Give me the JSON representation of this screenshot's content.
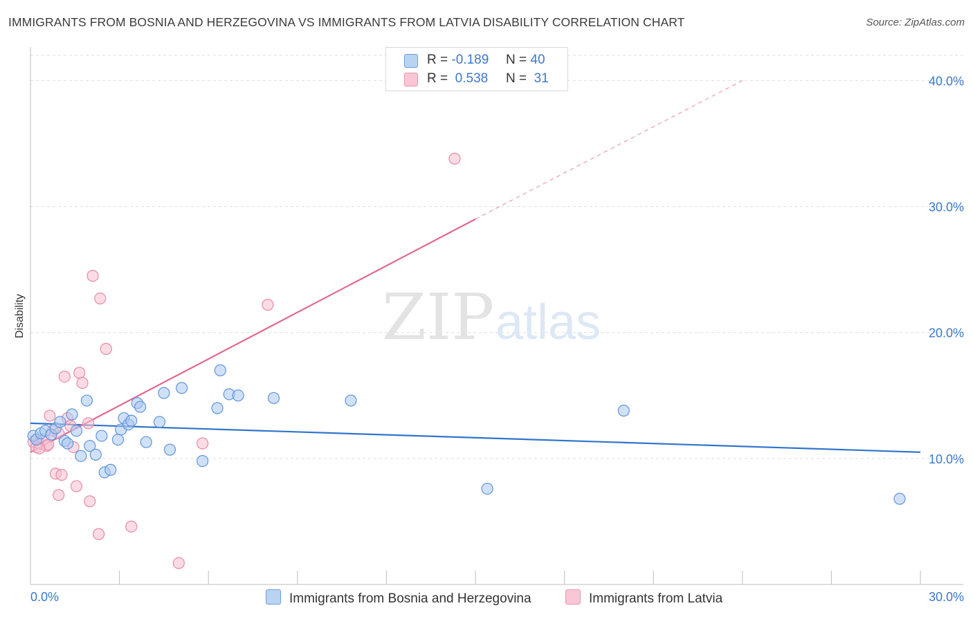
{
  "header": {
    "title": "IMMIGRANTS FROM BOSNIA AND HERZEGOVINA VS IMMIGRANTS FROM LATVIA DISABILITY CORRELATION CHART",
    "source": "Source: ZipAtlas.com"
  },
  "watermark": {
    "zip": "ZIP",
    "atlas": "atlas"
  },
  "legend": {
    "rows": [
      {
        "r_label": "R =",
        "r_value": "-0.189",
        "n_label": "N =",
        "n_value": "40"
      },
      {
        "r_label": "R =",
        "r_value": "0.538",
        "n_label": "N =",
        "n_value": "31"
      }
    ]
  },
  "bottom_legend": {
    "series1": "Immigrants from Bosnia and Herzegovina",
    "series2": "Immigrants from Latvia"
  },
  "colors": {
    "series1_fill": "#a9c8f0",
    "series1_stroke": "#5f95db",
    "series1_line": "#2f74cd",
    "series2_fill": "#f7bfd0",
    "series2_stroke": "#e88aa8",
    "series2_line": "#e06891",
    "tick_text": "#3b78c9",
    "grid": "#dddddd"
  },
  "chart_data": {
    "type": "scatter",
    "title": "IMMIGRANTS FROM BOSNIA AND HERZEGOVINA VS IMMIGRANTS FROM LATVIA DISABILITY CORRELATION CHART",
    "xlabel": "",
    "ylabel": "Disability",
    "xlim": [
      0,
      30
    ],
    "ylim": [
      0,
      42
    ],
    "x_tick_labels": [
      "0.0%",
      "30.0%"
    ],
    "y_ticks": [
      10,
      20,
      30,
      40
    ],
    "y_tick_labels": [
      "10.0%",
      "20.0%",
      "30.0%",
      "40.0%"
    ],
    "grid": true,
    "legend_position": "top-center",
    "series": [
      {
        "name": "Immigrants from Bosnia and Herzegovina",
        "R": -0.189,
        "N": 40,
        "trend": {
          "x": [
            0,
            30
          ],
          "y": [
            12.8,
            10.5
          ]
        },
        "points": [
          [
            0.1,
            11.8
          ],
          [
            0.2,
            11.5
          ],
          [
            0.35,
            12.0
          ],
          [
            0.5,
            12.2
          ],
          [
            0.7,
            11.9
          ],
          [
            0.85,
            12.4
          ],
          [
            1.0,
            12.9
          ],
          [
            1.15,
            11.4
          ],
          [
            1.25,
            11.2
          ],
          [
            1.4,
            13.5
          ],
          [
            1.55,
            12.2
          ],
          [
            1.7,
            10.2
          ],
          [
            1.9,
            14.6
          ],
          [
            2.0,
            11.0
          ],
          [
            2.2,
            10.3
          ],
          [
            2.4,
            11.8
          ],
          [
            2.5,
            8.9
          ],
          [
            2.7,
            9.1
          ],
          [
            2.95,
            11.5
          ],
          [
            3.05,
            12.3
          ],
          [
            3.15,
            13.2
          ],
          [
            3.3,
            12.7
          ],
          [
            3.4,
            13.0
          ],
          [
            3.6,
            14.4
          ],
          [
            3.7,
            14.1
          ],
          [
            3.9,
            11.3
          ],
          [
            4.35,
            12.9
          ],
          [
            4.5,
            15.2
          ],
          [
            4.7,
            10.7
          ],
          [
            5.1,
            15.6
          ],
          [
            5.8,
            9.8
          ],
          [
            6.3,
            14.0
          ],
          [
            6.4,
            17.0
          ],
          [
            6.7,
            15.1
          ],
          [
            7.0,
            15.0
          ],
          [
            8.2,
            14.8
          ],
          [
            10.8,
            14.6
          ],
          [
            20.0,
            13.8
          ],
          [
            15.4,
            7.6
          ],
          [
            29.3,
            6.8
          ]
        ]
      },
      {
        "name": "Immigrants from Latvia",
        "R": 0.538,
        "N": 31,
        "trend": {
          "x": [
            0,
            15
          ],
          "y": [
            10.5,
            29.0
          ]
        },
        "trend_ext": {
          "x": [
            15,
            24
          ],
          "y": [
            29.0,
            40.0
          ]
        },
        "points": [
          [
            0.1,
            11.3
          ],
          [
            0.2,
            10.9
          ],
          [
            0.3,
            11.2
          ],
          [
            0.45,
            11.5
          ],
          [
            0.55,
            11.0
          ],
          [
            0.65,
            13.4
          ],
          [
            0.75,
            12.2
          ],
          [
            0.85,
            8.8
          ],
          [
            0.95,
            7.1
          ],
          [
            1.05,
            8.7
          ],
          [
            1.15,
            16.5
          ],
          [
            1.25,
            13.2
          ],
          [
            1.35,
            12.6
          ],
          [
            1.45,
            10.9
          ],
          [
            1.55,
            7.8
          ],
          [
            1.65,
            16.8
          ],
          [
            1.75,
            16.0
          ],
          [
            1.95,
            12.8
          ],
          [
            2.0,
            6.6
          ],
          [
            2.1,
            24.5
          ],
          [
            2.3,
            4.0
          ],
          [
            2.35,
            22.7
          ],
          [
            2.55,
            18.7
          ],
          [
            3.4,
            4.6
          ],
          [
            5.0,
            1.7
          ],
          [
            5.8,
            11.2
          ],
          [
            8.0,
            22.2
          ],
          [
            14.3,
            33.8
          ],
          [
            0.95,
            12.0
          ],
          [
            0.6,
            11.1
          ],
          [
            0.3,
            10.8
          ]
        ]
      }
    ]
  }
}
